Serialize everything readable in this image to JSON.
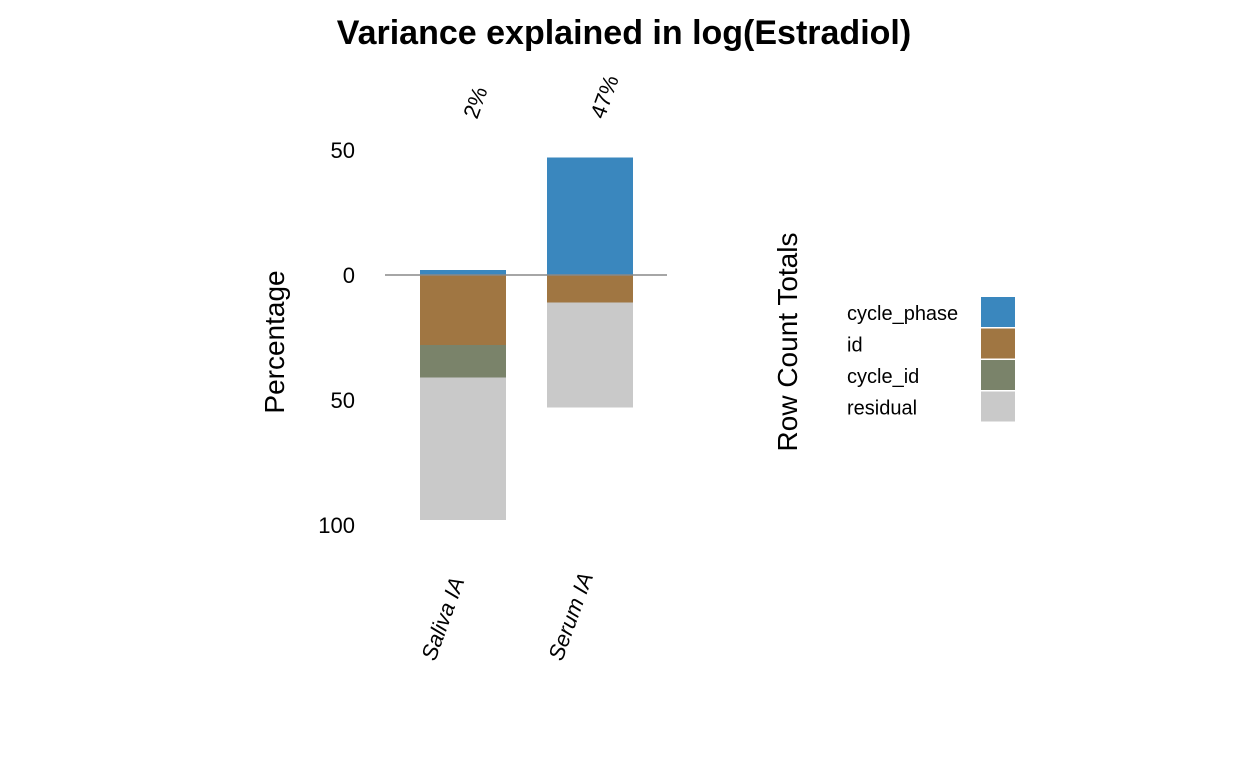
{
  "chart_data": {
    "type": "bar",
    "title": "Variance explained in log(Estradiol)",
    "y_label": "Percentage",
    "legend_title": "Row Count Totals",
    "categories": [
      "Saliva IA",
      "Serum IA"
    ],
    "series": [
      {
        "name": "cycle_phase",
        "color": "#3a87be",
        "side": "above",
        "values": [
          2,
          47
        ],
        "value_labels": [
          "2%",
          "47%"
        ]
      },
      {
        "name": "id",
        "color": "#a07642",
        "side": "below",
        "values": [
          28,
          11
        ]
      },
      {
        "name": "cycle_id",
        "color": "#7a836a",
        "side": "below",
        "values": [
          13,
          0
        ]
      },
      {
        "name": "residual",
        "color": "#c9c9c9",
        "side": "below",
        "values": [
          57,
          42
        ]
      }
    ],
    "ylim": [
      -100,
      50
    ],
    "yticks": [
      50,
      0,
      {
        "value": -50,
        "label": "50"
      },
      {
        "value": -100,
        "label": "100"
      }
    ],
    "legend": "right"
  }
}
